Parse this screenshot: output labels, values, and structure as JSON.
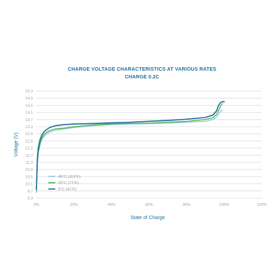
{
  "colors": {
    "accent": "#1c6f99",
    "grid": "#d9dcdf",
    "tick_text": "#9aa0a6",
    "series_45c": "#8cc9d6",
    "series_25c": "#4caf50",
    "series_5c": "#1b6b9a"
  },
  "chart_data": {
    "type": "line",
    "title": "CHARGE VOLTAGE CHARACTERISTICS AT VARIOUS RATES",
    "subtitle": "CHARGE 0.2C",
    "xlabel": "State of Charge",
    "ylabel": "Voltage (V)",
    "xlim": [
      0,
      120
    ],
    "ylim": [
      9.3,
      15.3
    ],
    "x_ticks": [
      "0%",
      "20%",
      "40%",
      "60%",
      "80%",
      "100%",
      "120%"
    ],
    "x_tick_values": [
      0,
      20,
      40,
      60,
      80,
      100,
      120
    ],
    "y_ticks": [
      "15.3",
      "14.9",
      "14.5",
      "14.1",
      "13.7",
      "13.3",
      "12.9",
      "12.5",
      "12.1",
      "11.7",
      "11.3",
      "10.9",
      "10.5",
      "10.1",
      "9.7",
      "9.3"
    ],
    "y_tick_values": [
      15.3,
      14.9,
      14.5,
      14.1,
      13.7,
      13.3,
      12.9,
      12.5,
      12.1,
      11.7,
      11.3,
      10.9,
      10.5,
      10.1,
      9.7,
      9.3
    ],
    "grid": true,
    "legend_position": "lower-left",
    "series": [
      {
        "name": "45°C (113°F)",
        "color": "#8cc9d6",
        "x": [
          0,
          0.5,
          1,
          2,
          3,
          4,
          5,
          7,
          10,
          15,
          20,
          30,
          40,
          50,
          60,
          70,
          80,
          90,
          94,
          96,
          97,
          98,
          99
        ],
        "y": [
          9.6,
          11.2,
          11.8,
          12.3,
          12.6,
          12.75,
          12.85,
          13.0,
          13.1,
          13.18,
          13.25,
          13.35,
          13.42,
          13.45,
          13.47,
          13.5,
          13.55,
          13.6,
          13.7,
          13.85,
          14.0,
          14.15,
          14.25
        ]
      },
      {
        "name": "25°C (77°F)",
        "color": "#4caf50",
        "x": [
          0,
          0.5,
          1,
          2,
          3,
          4,
          5,
          7,
          10,
          15,
          20,
          30,
          40,
          50,
          60,
          70,
          80,
          90,
          94,
          96,
          97,
          98,
          99
        ],
        "y": [
          9.7,
          11.3,
          11.9,
          12.4,
          12.7,
          12.85,
          12.95,
          13.08,
          13.18,
          13.22,
          13.3,
          13.4,
          13.46,
          13.48,
          13.5,
          13.55,
          13.6,
          13.7,
          13.8,
          14.0,
          14.2,
          14.45,
          14.6
        ]
      },
      {
        "name": "5°C (41°F)",
        "color": "#1b6b9a",
        "x": [
          0,
          0.5,
          1,
          2,
          3,
          4,
          5,
          7,
          10,
          15,
          20,
          30,
          40,
          50,
          60,
          70,
          80,
          90,
          94,
          96,
          97,
          98,
          99,
          100
        ],
        "y": [
          9.8,
          11.5,
          12.1,
          12.6,
          12.85,
          13.0,
          13.1,
          13.25,
          13.35,
          13.42,
          13.45,
          13.48,
          13.52,
          13.55,
          13.6,
          13.65,
          13.72,
          13.82,
          13.95,
          14.2,
          14.5,
          14.65,
          14.7,
          14.7
        ]
      }
    ]
  }
}
